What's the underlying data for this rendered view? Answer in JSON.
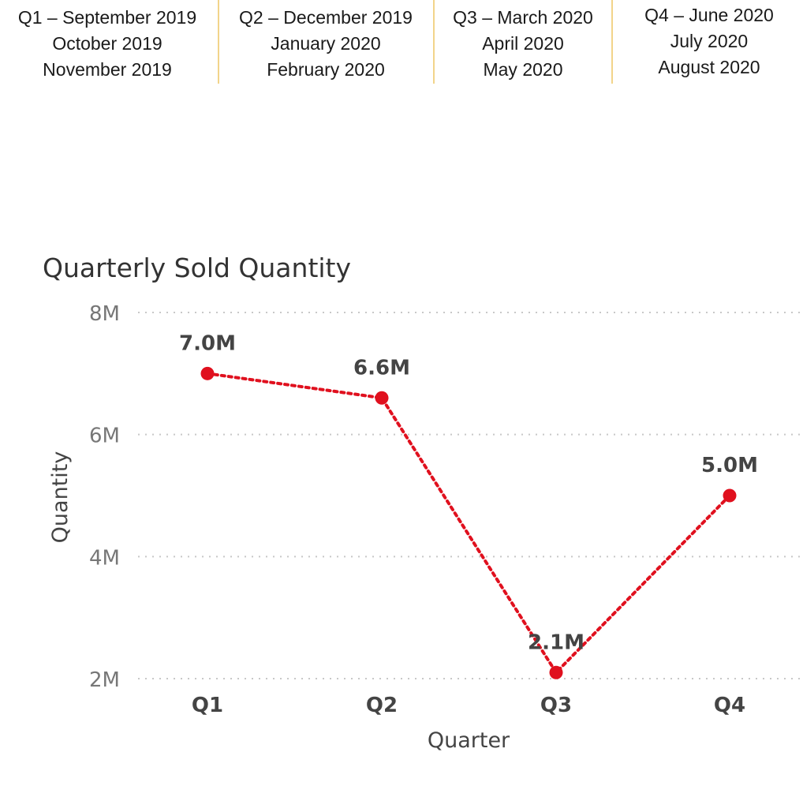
{
  "quarter_legend": [
    {
      "lines": [
        "Q1 – September 2019",
        "October 2019",
        "November 2019"
      ]
    },
    {
      "lines": [
        "Q2 – December 2019",
        "January 2020",
        "February 2020"
      ]
    },
    {
      "lines": [
        "Q3 – March 2020",
        "April 2020",
        "May 2020"
      ]
    },
    {
      "lines": [
        "Q4 – June 2020",
        "July 2020",
        "August 2020"
      ]
    }
  ],
  "chart_data": {
    "type": "line",
    "title": "Quarterly Sold Quantity",
    "xlabel": "Quarter",
    "ylabel": "Quantity",
    "categories": [
      "Q1",
      "Q2",
      "Q3",
      "Q4"
    ],
    "series": [
      {
        "values": [
          7.0,
          6.6,
          2.1,
          5.0
        ],
        "data_labels": [
          "7.0M",
          "6.6M",
          "2.1M",
          "5.0M"
        ],
        "color": "#e0101e"
      }
    ],
    "yticks": [
      2,
      4,
      6,
      8
    ],
    "ytick_labels": [
      "2M",
      "4M",
      "6M",
      "8M"
    ],
    "ylim": [
      2,
      8
    ],
    "grid": true,
    "line_style": "dotted"
  }
}
